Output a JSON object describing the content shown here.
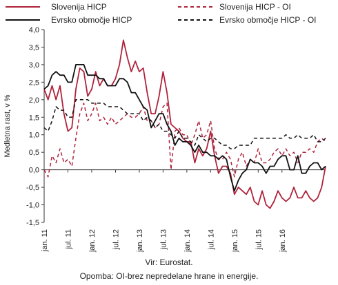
{
  "chart_data": {
    "type": "line",
    "title": "",
    "ylabel": "Medletna rast, v %",
    "xlabel": "",
    "ylim": [
      -1.5,
      4.0
    ],
    "yticks": [
      -1.5,
      -1.0,
      -0.5,
      0.0,
      0.5,
      1.0,
      1.5,
      2.0,
      2.5,
      3.0,
      3.5,
      4.0
    ],
    "ytick_labels": [
      "-1,5",
      "-1,0",
      "-0,5",
      "0,0",
      "0,5",
      "1,0",
      "1,5",
      "2,0",
      "2,5",
      "3,0",
      "3,5",
      "4,0"
    ],
    "x_start": "2011-01",
    "x_end": "2016-12",
    "xtick_labels": [
      "jan. 11",
      "jul. 11",
      "jan. 12",
      "jul. 12",
      "jan. 13",
      "jul. 13",
      "jan. 14",
      "jul. 14",
      "jan. 15",
      "jul. 15",
      "jan. 16"
    ],
    "xtick_dates": [
      "2011-01",
      "2011-07",
      "2012-01",
      "2012-07",
      "2013-01",
      "2013-07",
      "2014-01",
      "2014-07",
      "2015-01",
      "2015-07",
      "2016-01"
    ],
    "grid": false,
    "legend": "top",
    "series": [
      {
        "name": "Slovenija HICP",
        "color": "#b0223a",
        "style": "solid",
        "values": [
          2.3,
          2.0,
          2.4,
          2.0,
          2.4,
          1.6,
          1.1,
          1.2,
          2.3,
          2.9,
          2.8,
          2.1,
          2.3,
          2.8,
          2.4,
          2.6,
          2.4,
          2.4,
          2.6,
          3.0,
          3.7,
          3.2,
          2.8,
          3.1,
          2.8,
          2.9,
          2.2,
          1.6,
          1.6,
          2.1,
          2.8,
          2.2,
          1.3,
          1.2,
          1.1,
          0.9,
          0.8,
          0.8,
          0.2,
          0.6,
          0.4,
          0.6,
          1.1,
          0.4,
          -0.1,
          0.1,
          0.1,
          -0.1,
          -0.7,
          -0.5,
          -0.6,
          -0.7,
          -0.5,
          -0.9,
          -1.0,
          -0.6,
          -1.0,
          -1.1,
          -0.9,
          -0.6,
          -0.8,
          -0.9,
          -0.8,
          -0.5,
          -0.8,
          -0.8,
          -0.6,
          -0.8,
          -0.9,
          -0.8,
          -0.5,
          0.1
        ]
      },
      {
        "name": "Slovenija HICP - OI",
        "color": "#b0223a",
        "style": "dashed",
        "values": [
          0.0,
          -0.2,
          0.4,
          0.2,
          0.6,
          0.2,
          0.3,
          0.1,
          0.9,
          1.6,
          1.9,
          1.4,
          1.6,
          1.9,
          1.4,
          1.5,
          1.3,
          1.5,
          1.3,
          1.4,
          1.5,
          1.6,
          1.5,
          1.5,
          1.6,
          1.8,
          1.4,
          1.4,
          1.2,
          1.3,
          1.8,
          1.9,
          0.0,
          1.1,
          1.2,
          1.0,
          1.0,
          0.7,
          1.0,
          1.4,
          0.9,
          1.0,
          1.4,
          0.6,
          0.3,
          0.3,
          0.5,
          0.3,
          -0.2,
          0.3,
          0.5,
          0.1,
          0.3,
          0.2,
          0.6,
          0.2,
          0.2,
          0.3,
          0.5,
          0.6,
          0.4,
          0.6,
          0.4,
          0.5,
          0.2,
          0.5,
          0.5,
          0.6,
          0.5,
          0.8,
          0.9,
          0.8
        ]
      },
      {
        "name": "Evrsko območje HICP",
        "color": "#111111",
        "style": "solid",
        "values": [
          2.3,
          2.4,
          2.7,
          2.8,
          2.7,
          2.7,
          2.5,
          2.5,
          3.0,
          3.0,
          3.0,
          2.7,
          2.7,
          2.7,
          2.6,
          2.6,
          2.4,
          2.4,
          2.4,
          2.6,
          2.6,
          2.5,
          2.2,
          2.2,
          2.0,
          1.8,
          1.7,
          1.2,
          1.4,
          1.6,
          1.6,
          1.3,
          1.1,
          0.7,
          0.9,
          0.8,
          0.8,
          0.7,
          0.5,
          0.7,
          0.5,
          0.5,
          0.4,
          0.4,
          0.3,
          0.4,
          0.3,
          -0.2,
          -0.6,
          -0.3,
          -0.1,
          0.0,
          0.3,
          0.2,
          0.2,
          0.1,
          -0.1,
          0.1,
          0.1,
          0.3,
          0.4,
          0.4,
          0.0,
          0.0,
          0.4,
          -0.1,
          -0.1,
          0.1,
          0.2,
          0.2,
          0.0,
          0.1
        ]
      },
      {
        "name": "Evrsko območje HICP - OI",
        "color": "#111111",
        "style": "dashed",
        "values": [
          1.2,
          1.1,
          1.4,
          1.8,
          1.7,
          1.7,
          1.5,
          1.5,
          2.0,
          2.0,
          2.0,
          2.0,
          1.9,
          1.9,
          1.9,
          1.9,
          1.8,
          1.8,
          1.8,
          1.8,
          1.7,
          1.6,
          1.6,
          1.6,
          1.6,
          1.4,
          1.5,
          1.4,
          1.2,
          1.3,
          1.1,
          1.1,
          1.0,
          0.9,
          1.1,
          0.9,
          0.9,
          0.8,
          0.7,
          1.0,
          0.9,
          0.8,
          0.9,
          0.9,
          0.8,
          0.7,
          0.7,
          0.6,
          0.6,
          0.7,
          0.7,
          0.7,
          0.7,
          0.9,
          0.9,
          0.9,
          0.9,
          0.9,
          0.9,
          0.9,
          0.9,
          1.0,
          0.9,
          0.9,
          1.0,
          0.9,
          0.9,
          0.9,
          1.0,
          0.8,
          0.8,
          0.9
        ]
      }
    ]
  },
  "source_note": "Vir: Eurostat.",
  "footnote": "Opomba: OI-brez nepredelane hrane in energije."
}
